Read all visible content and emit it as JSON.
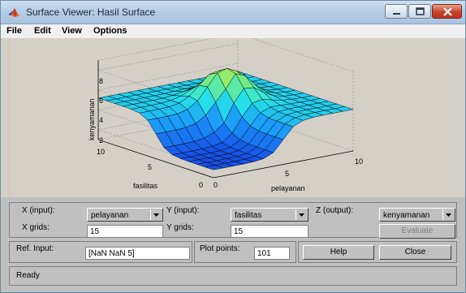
{
  "window": {
    "title": "Surface Viewer: Hasil Surface",
    "accent": "#a9c3df"
  },
  "menu": [
    "File",
    "Edit",
    "View",
    "Options"
  ],
  "plot": {
    "zlabel": "kenyamanan",
    "xlabel": "pelayanan",
    "ylabel": "fasilitas",
    "z_ticks": [
      "8",
      "6",
      "4",
      "2"
    ],
    "x_ticks": [
      "0",
      "5",
      "10"
    ],
    "y_ticks": [
      "10",
      "5",
      "0"
    ],
    "x_range": [
      0,
      10
    ],
    "y_range": [
      0,
      10
    ],
    "z_range": [
      1,
      9
    ]
  },
  "inputs": {
    "x_label": "X (input):",
    "x_value": "pelayanan",
    "y_label": "Y (input):",
    "y_value": "fasilitas",
    "z_label": "Z (output):",
    "z_value": "kenyamanan",
    "x_grids_label": "X grids:",
    "x_grids_value": "15",
    "y_grids_label": "Y grids:",
    "y_grids_value": "15",
    "evaluate_label": "Evaluate"
  },
  "ref": {
    "ref_label": "Ref. Input:",
    "ref_value": "[NaN NaN 5]",
    "plot_points_label": "Plot points:",
    "plot_points_value": "101",
    "help_label": "Help",
    "close_label": "Close"
  },
  "status": {
    "text": "Ready"
  }
}
